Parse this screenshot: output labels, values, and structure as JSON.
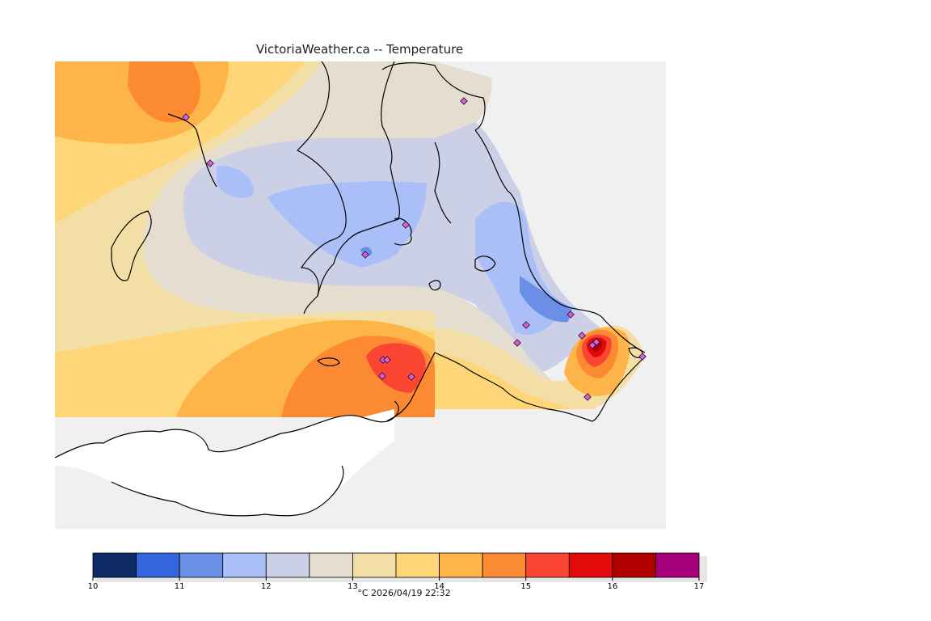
{
  "title": "VictoriaWeather.ca -- Temperature",
  "timestamp": "°C  2026/04/19 22:32",
  "legend": {
    "ticks": [
      "10",
      "11",
      "12",
      "13",
      "14",
      "15",
      "16",
      "17"
    ],
    "bins": [
      {
        "min": 10.0,
        "max": 10.5,
        "color": "#0d2a66"
      },
      {
        "min": 10.5,
        "max": 11.0,
        "color": "#3366dd"
      },
      {
        "min": 11.0,
        "max": 11.5,
        "color": "#6b8ee6"
      },
      {
        "min": 11.5,
        "max": 12.0,
        "color": "#aabff7"
      },
      {
        "min": 12.0,
        "max": 12.5,
        "color": "#cbd0e6"
      },
      {
        "min": 12.5,
        "max": 13.0,
        "color": "#e5ddd0"
      },
      {
        "min": 13.0,
        "max": 13.5,
        "color": "#f3dfa6"
      },
      {
        "min": 13.5,
        "max": 14.0,
        "color": "#fed678"
      },
      {
        "min": 14.0,
        "max": 14.5,
        "color": "#fdb449"
      },
      {
        "min": 14.5,
        "max": 15.0,
        "color": "#fc8a33"
      },
      {
        "min": 15.0,
        "max": 15.5,
        "color": "#fb4533"
      },
      {
        "min": 15.5,
        "max": 16.0,
        "color": "#e20a0a"
      },
      {
        "min": 16.0,
        "max": 16.5,
        "color": "#b10000"
      },
      {
        "min": 16.5,
        "max": 17.0,
        "color": "#a8007a"
      }
    ]
  },
  "colors": {
    "background_outside": "#f0f0f0",
    "land_no_data": "#ffffff",
    "coastline": "#000000",
    "station_marker": "#cc66cc"
  }
}
